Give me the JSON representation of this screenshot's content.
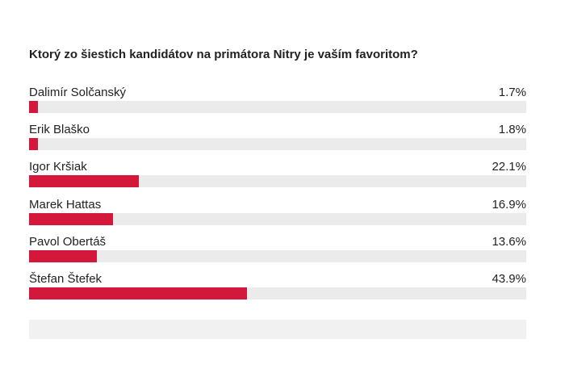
{
  "colors": {
    "bar_fill": "#d4183c",
    "bar_track": "#ebebeb",
    "text": "#222222"
  },
  "chart_data": {
    "type": "bar",
    "orientation": "horizontal",
    "title": "Ktorý zo šiestich kandidátov na primátora Nitry je vaším favoritom?",
    "categories": [
      "Dalimír Solčanský",
      "Erik Blaško",
      "Igor Kršiak",
      "Marek Hattas",
      "Pavol Obertáš",
      "Štefan Štefek"
    ],
    "values": [
      1.7,
      1.8,
      22.1,
      16.9,
      13.6,
      43.9
    ],
    "value_labels": [
      "1.7%",
      "1.8%",
      "22.1%",
      "16.9%",
      "13.6%",
      "43.9%"
    ],
    "unit": "%",
    "xlim": [
      0,
      100
    ],
    "grid": false,
    "legend": "none"
  }
}
